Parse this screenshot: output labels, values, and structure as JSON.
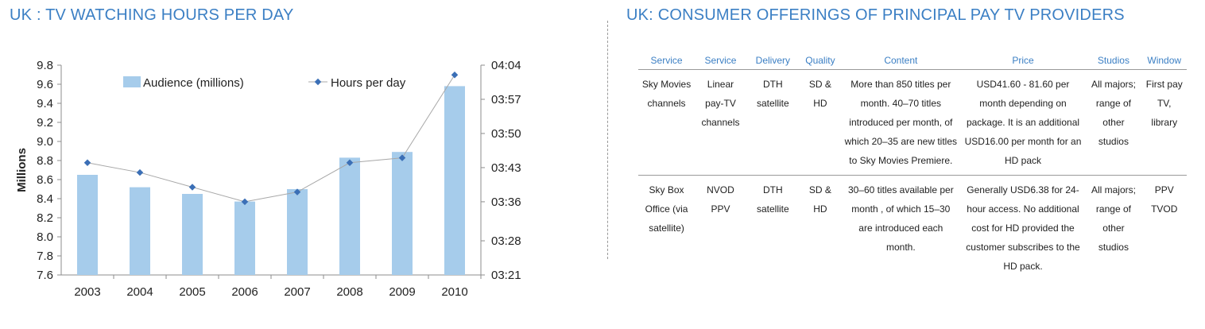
{
  "left_title": "UK : TV WATCHING HOURS PER DAY",
  "right_title": "UK: CONSUMER OFFERINGS OF PRINCIPAL PAY TV PROVIDERS",
  "chart_data": {
    "type": "bar+line",
    "categories": [
      "2003",
      "2004",
      "2005",
      "2006",
      "2007",
      "2008",
      "2009",
      "2010"
    ],
    "series": [
      {
        "name": "Audience (millions)",
        "type": "bar",
        "axis": "left",
        "color": "#a6cceb",
        "values": [
          8.65,
          8.52,
          8.45,
          8.37,
          8.5,
          8.83,
          8.89,
          9.58
        ]
      },
      {
        "name": "Hours per day",
        "type": "line",
        "axis": "right",
        "color": "#3b6fb6",
        "values": [
          "03:44",
          "03:42",
          "03:39",
          "03:36",
          "03:38",
          "03:44",
          "03:45",
          "04:02"
        ]
      }
    ],
    "ylabel": "Millions",
    "ylim": [
      7.6,
      9.8
    ],
    "yticks": [
      "7.6",
      "7.8",
      "8.0",
      "8.2",
      "8.4",
      "8.6",
      "8.8",
      "9.0",
      "9.2",
      "9.4",
      "9.6",
      "9.8"
    ],
    "y2ticks": [
      "03:21",
      "03:28",
      "03:36",
      "03:43",
      "03:50",
      "03:57",
      "04:04"
    ],
    "legend_position": "top",
    "grid": false
  },
  "table": {
    "headers": [
      "Service",
      "Service",
      "Delivery",
      "Quality",
      "Content",
      "Price",
      "Studios",
      "Window"
    ],
    "rows": [
      [
        "Sky Movies channels",
        "Linear pay-TV channels",
        "DTH satellite",
        "SD & HD",
        "More than 850 titles per month. 40–70 titles introduced per month, of which 20–35 are new titles to Sky Movies Premiere.",
        "USD41.60 - 81.60 per month depending on package. It is an additional USD16.00 per month for an HD pack",
        "All majors; range of other studios",
        "First pay TV, library"
      ],
      [
        "Sky Box Office (via satellite)",
        "NVOD PPV",
        "DTH satellite",
        "SD & HD",
        "30–60 titles available per month , of which 15–30 are introduced each month.",
        "Generally USD6.38 for 24-hour access. No additional cost for HD provided the customer subscribes to the HD pack.",
        "All majors; range of other studios",
        "PPV TVOD"
      ]
    ]
  }
}
